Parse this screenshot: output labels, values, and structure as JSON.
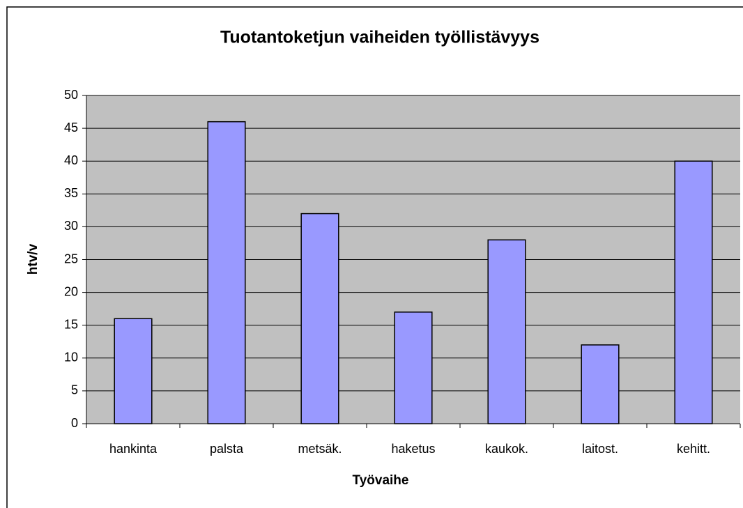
{
  "chart_data": {
    "type": "bar",
    "title": "Tuotantoketjun vaiheiden työllistävyys",
    "x_label": "Työvaihe",
    "y_label": "htv/v",
    "categories": [
      "hankinta",
      "palsta",
      "metsäk.",
      "haketus",
      "kaukok.",
      "laitost.",
      "kehitt."
    ],
    "values": [
      16,
      46,
      32,
      17,
      28,
      12,
      40
    ],
    "color": "#9999ff",
    "ylim": [
      0,
      50
    ],
    "yticks": [
      0,
      5,
      10,
      15,
      20,
      25,
      30,
      35,
      40,
      45,
      50
    ],
    "grid": true
  }
}
